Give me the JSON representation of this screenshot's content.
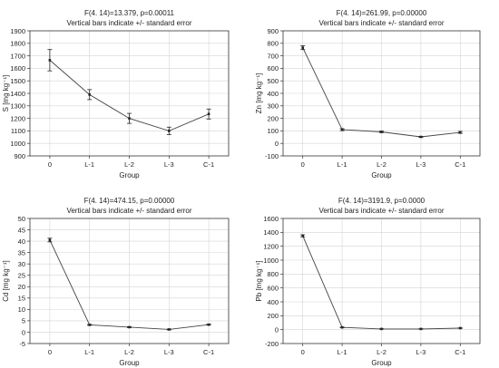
{
  "chart_data": [
    {
      "type": "line",
      "title": "F(4. 14)=13.379, p=0.00011",
      "subtitle": "Vertical bars indicate +/- standard error",
      "xlabel": "Group",
      "ylabel": "S [mg kg⁻¹]",
      "categories": [
        "0",
        "L-1",
        "L-2",
        "L-3",
        "C-1"
      ],
      "values": [
        1665,
        1390,
        1200,
        1100,
        1235
      ],
      "errors": [
        85,
        40,
        40,
        30,
        40
      ],
      "ylim": [
        900,
        1900
      ],
      "yticks": [
        "900",
        "1000",
        "1100",
        "1200",
        "1300",
        "1400",
        "1500",
        "1600",
        "1700",
        "1800",
        "1900"
      ],
      "grid": true
    },
    {
      "type": "line",
      "title": "F(4. 14)=261.99, p=0.00000",
      "subtitle": "Vertical bars indicate +/- standard error",
      "xlabel": "Group",
      "ylabel": "Zn [mg kg⁻¹]",
      "categories": [
        "0",
        "L-1",
        "L-2",
        "L-3",
        "C-1"
      ],
      "values": [
        765,
        110,
        92,
        52,
        88
      ],
      "errors": [
        15,
        8,
        6,
        4,
        8
      ],
      "ylim": [
        -100,
        900
      ],
      "yticks": [
        "-100",
        "0",
        "100",
        "200",
        "300",
        "400",
        "500",
        "600",
        "700",
        "800",
        "900"
      ],
      "grid": true
    },
    {
      "type": "line",
      "title": "F(4. 14)=474.15, p=0.00000",
      "subtitle": "Vertical bars indicate +/- standard error",
      "xlabel": "Group",
      "ylabel": "Cd [mg kg⁻¹]",
      "categories": [
        "0",
        "L-1",
        "L-2",
        "L-3",
        "C-1"
      ],
      "values": [
        40.5,
        3.2,
        2.2,
        1.2,
        3.3
      ],
      "errors": [
        0.8,
        0.2,
        0.2,
        0.2,
        0.2
      ],
      "ylim": [
        -5,
        50
      ],
      "yticks": [
        "-5",
        "0",
        "5",
        "10",
        "15",
        "20",
        "25",
        "30",
        "35",
        "40",
        "45",
        "50"
      ],
      "grid": true
    },
    {
      "type": "line",
      "title": "F(4. 14)=3191.9, p=0.0000",
      "subtitle": "Vertical bars indicate +/- standard error",
      "xlabel": "Group",
      "ylabel": "Pb [mg kg⁻¹]",
      "categories": [
        "0",
        "L-1",
        "L-2",
        "L-3",
        "C-1"
      ],
      "values": [
        1350,
        32,
        10,
        10,
        22
      ],
      "errors": [
        15,
        4,
        3,
        3,
        3
      ],
      "ylim": [
        -200,
        1600
      ],
      "yticks": [
        "-200",
        "0",
        "200",
        "400",
        "600",
        "800",
        "1000",
        "1200",
        "1400",
        "1600"
      ],
      "grid": true
    }
  ]
}
